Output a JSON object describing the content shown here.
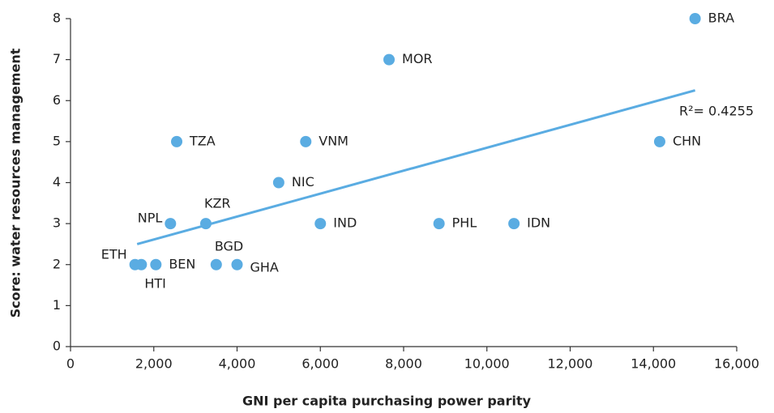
{
  "chart_data": {
    "type": "scatter",
    "xlabel": "GNI per capita purchasing power parity",
    "ylabel": "Score: water resources management",
    "series": [
      {
        "color": "#5aace2",
        "labels": [
          "BRA",
          "MOR",
          "CHN",
          "TZA",
          "VNM",
          "NIC",
          "NPL",
          "KZR",
          "IND",
          "PHL",
          "IDN",
          "ETH",
          "HTI",
          "BEN",
          "BGD",
          "GHA"
        ],
        "x": [
          15000,
          7650,
          14150,
          2550,
          5650,
          5000,
          2400,
          3250,
          6000,
          8850,
          10650,
          1550,
          1700,
          2050,
          3500,
          4000
        ],
        "y": [
          8,
          7,
          5,
          5,
          5,
          4,
          3,
          3,
          3,
          3,
          3,
          2,
          2,
          2,
          2,
          2
        ]
      }
    ],
    "trendline": {
      "color": "#5aace2",
      "x": [
        1600,
        15000
      ],
      "y": [
        2.5,
        6.25
      ],
      "label": "R²= 0.4255"
    },
    "xlim": [
      0,
      16000
    ],
    "xticks": [
      0,
      {
        "value": 2000,
        "label": "2,000"
      },
      {
        "value": 4000,
        "label": "4,000"
      },
      {
        "value": 6000,
        "label": "6,000"
      },
      {
        "value": 8000,
        "label": "8,000"
      },
      {
        "value": 10000,
        "label": "10,000"
      },
      {
        "value": 12000,
        "label": "12,000"
      },
      {
        "value": 14000,
        "label": "14,000"
      },
      {
        "value": 16000,
        "label": "16,000"
      }
    ],
    "ylim": [
      0,
      8
    ],
    "yticks": [
      0,
      1,
      2,
      3,
      4,
      5,
      6,
      7,
      8
    ]
  }
}
